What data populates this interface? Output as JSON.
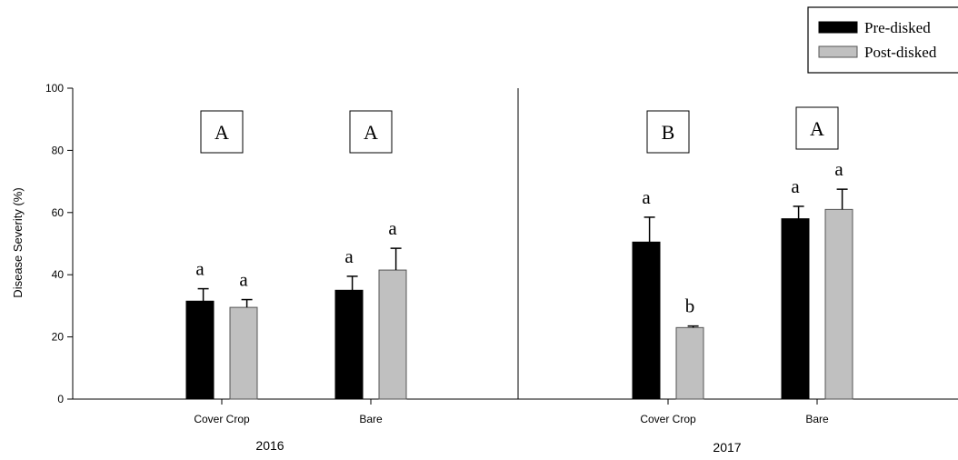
{
  "chart_data": {
    "type": "bar",
    "ylabel": "Disease Severity (%)",
    "ylim": [
      0,
      100
    ],
    "yticks": [
      0,
      20,
      40,
      60,
      80,
      100
    ],
    "grid": false,
    "legend_position": "top-right",
    "series": [
      {
        "name": "Pre-disked",
        "color": "#000000"
      },
      {
        "name": "Post-disked",
        "color": "#c0c0c0"
      }
    ],
    "panels": [
      {
        "label": "2016",
        "groups": [
          {
            "category": "Cover Crop",
            "group_letter": "A",
            "bars": [
              {
                "series": "Pre-disked",
                "value": 31.5,
                "error": 4,
                "letter": "a"
              },
              {
                "series": "Post-disked",
                "value": 29.5,
                "error": 2.5,
                "letter": "a"
              }
            ]
          },
          {
            "category": "Bare",
            "group_letter": "A",
            "bars": [
              {
                "series": "Pre-disked",
                "value": 35,
                "error": 4.5,
                "letter": "a"
              },
              {
                "series": "Post-disked",
                "value": 41.5,
                "error": 7,
                "letter": "a"
              }
            ]
          }
        ]
      },
      {
        "label": "2017",
        "groups": [
          {
            "category": "Cover Crop",
            "group_letter": "B",
            "bars": [
              {
                "series": "Pre-disked",
                "value": 50.5,
                "error": 8,
                "letter": "a"
              },
              {
                "series": "Post-disked",
                "value": 23,
                "error": 0.5,
                "letter": "b"
              }
            ]
          },
          {
            "category": "Bare",
            "group_letter": "A",
            "bars": [
              {
                "series": "Pre-disked",
                "value": 58,
                "error": 4,
                "letter": "a"
              },
              {
                "series": "Post-disked",
                "value": 61,
                "error": 6.5,
                "letter": "a"
              }
            ]
          }
        ]
      }
    ]
  }
}
